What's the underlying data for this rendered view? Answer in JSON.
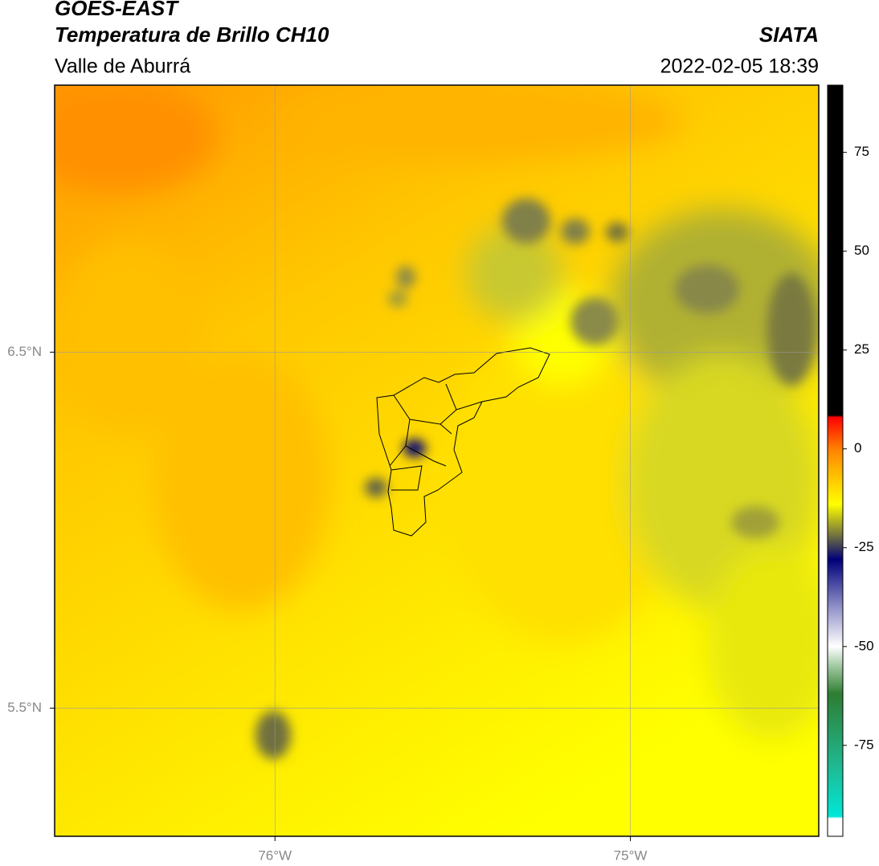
{
  "header": {
    "title": "GOES-EAST",
    "subtitle": "Temperatura de Brillo CH10",
    "agency": "SIATA",
    "region": "Valle de Aburrá",
    "datetime": "2022-02-05 18:39"
  },
  "map": {
    "xlim": [
      -76.62,
      -74.47
    ],
    "ylim": [
      5.14,
      7.25
    ],
    "xticks": [
      {
        "value": -76,
        "label": "76°W"
      },
      {
        "value": -75,
        "label": "75°W"
      }
    ],
    "yticks": [
      {
        "value": 6.5,
        "label": "6.5°N"
      },
      {
        "value": 5.5,
        "label": "5.5°N"
      }
    ],
    "grid": true
  },
  "colorbar": {
    "lim": [
      -98,
      92
    ],
    "ticks": [
      75,
      50,
      25,
      0,
      -25,
      -50,
      -75
    ],
    "stops": [
      {
        "value": -98,
        "color": "#ffffff"
      },
      {
        "value": -93.5,
        "color": "#ffffff"
      },
      {
        "value": -93,
        "color": "#00e8d8"
      },
      {
        "value": -80,
        "color": "#20b890"
      },
      {
        "value": -62,
        "color": "#2e7d32"
      },
      {
        "value": -55,
        "color": "#a0c8a0"
      },
      {
        "value": -50,
        "color": "#ffffff"
      },
      {
        "value": -40,
        "color": "#9090c8"
      },
      {
        "value": -28,
        "color": "#00007a"
      },
      {
        "value": -22,
        "color": "#707040"
      },
      {
        "value": -14,
        "color": "#ffff00"
      },
      {
        "value": -5,
        "color": "#ffb000"
      },
      {
        "value": 0,
        "color": "#ff8000"
      },
      {
        "value": 8,
        "color": "#ff0000"
      },
      {
        "value": 8.5,
        "color": "#000000"
      },
      {
        "value": 92,
        "color": "#000000"
      }
    ]
  }
}
